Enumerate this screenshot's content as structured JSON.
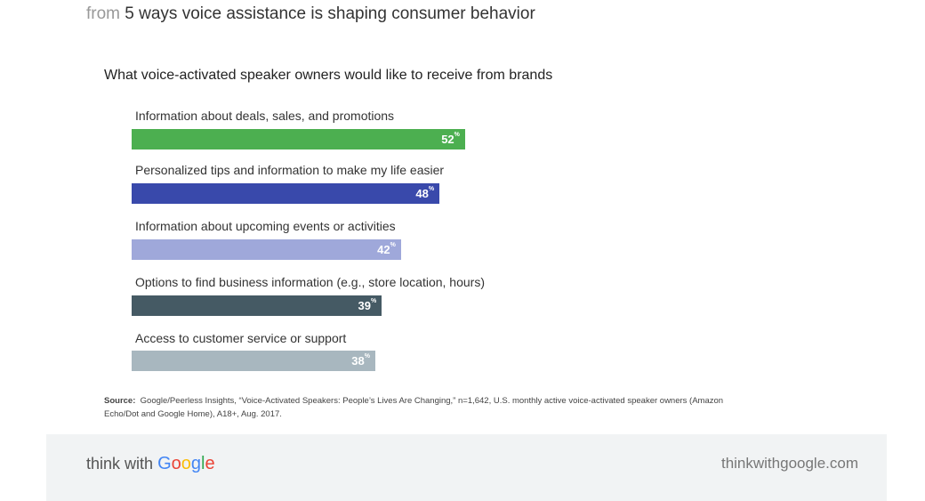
{
  "header": {
    "prefix": "from",
    "title": "5 ways voice assistance is shaping consumer behavior"
  },
  "chart_data": {
    "type": "bar",
    "orientation": "horizontal",
    "title": "What voice-activated speaker owners would like to receive from brands",
    "categories": [
      "Information about deals, sales, and promotions",
      "Personalized tips and information to make my life easier",
      "Information about upcoming events or activities",
      "Options to find business information (e.g., store location, hours)",
      "Access to customer service or support"
    ],
    "values": [
      52,
      48,
      42,
      39,
      38
    ],
    "value_labels": [
      "52",
      "48",
      "42",
      "39",
      "38"
    ],
    "unit": "%",
    "colors": [
      "#4caf50",
      "#3949ab",
      "#9fa8da",
      "#455a64",
      "#a8b7bf"
    ]
  },
  "source": {
    "label": "Source:",
    "text": "Google/Peerless Insights, “Voice-Activated Speakers: People’s Lives Are Changing,” n=1,642, U.S. monthly active voice-activated speaker owners (Amazon Echo/Dot and Google Home), A18+, Aug. 2017."
  },
  "footer": {
    "brand_prefix": "think with",
    "brand_logo": "Google",
    "url": "thinkwithgoogle.com",
    "google_colors": [
      "#4285f4",
      "#ea4335",
      "#fbbc05",
      "#4285f4",
      "#34a853",
      "#ea4335"
    ]
  }
}
